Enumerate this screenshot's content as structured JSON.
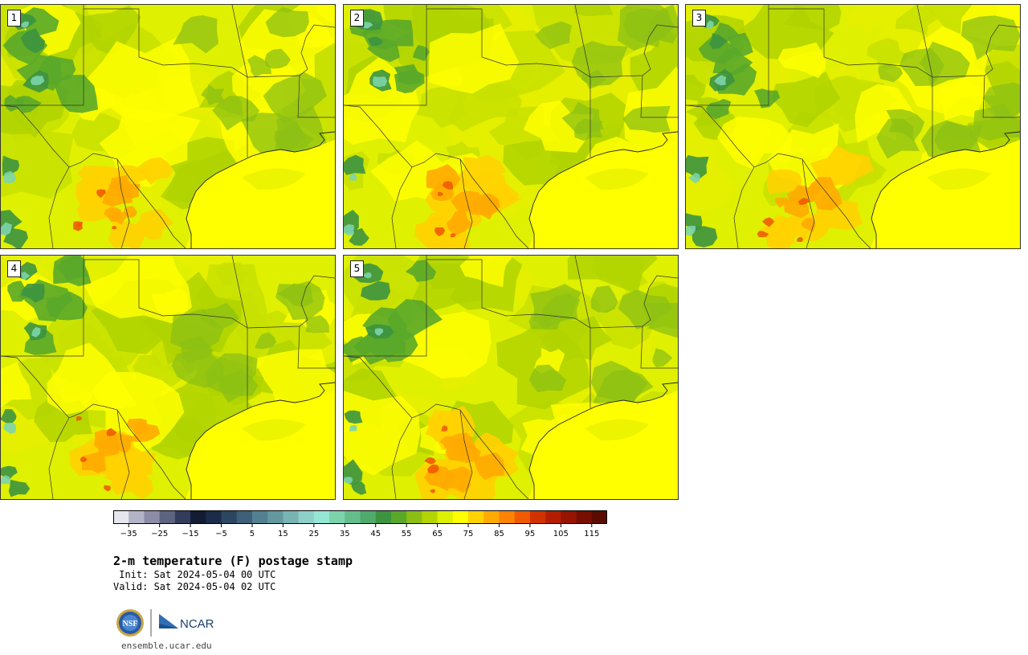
{
  "panels": [
    {
      "label": "1",
      "warmth": 0.55
    },
    {
      "label": "2",
      "warmth": 0.75
    },
    {
      "label": "3",
      "warmth": 0.7
    },
    {
      "label": "4",
      "warmth": 0.6
    },
    {
      "label": "5",
      "warmth": 0.65
    }
  ],
  "colorbar": {
    "colors": [
      "#e6e6ee",
      "#b4b4c8",
      "#8c8ca8",
      "#5c6482",
      "#343c5c",
      "#141c34",
      "#1c2c48",
      "#2c4660",
      "#3e6078",
      "#528090",
      "#62989e",
      "#78b4b4",
      "#8cd0c8",
      "#96e6d4",
      "#7cd4ac",
      "#64be8c",
      "#50aa6c",
      "#3c9440",
      "#5aa82a",
      "#8cbe14",
      "#b4d400",
      "#dcf000",
      "#ffff00",
      "#ffd200",
      "#ffaa00",
      "#ff8200",
      "#f05a00",
      "#d23200",
      "#b41e00",
      "#961400",
      "#780e00",
      "#5a0c00"
    ],
    "ticks": [
      "−35",
      "−25",
      "−15",
      "−5",
      "5",
      "15",
      "25",
      "35",
      "45",
      "55",
      "65",
      "75",
      "85",
      "95",
      "105",
      "115"
    ],
    "min": -40,
    "max": 120
  },
  "title": {
    "main": "2-m temperature (F) postage stamp",
    "init": " Init: Sat 2024-05-04 00 UTC",
    "valid": "Valid: Sat 2024-05-04 02 UTC"
  },
  "logos": {
    "nsf": "NSF",
    "ncar": "NCAR"
  },
  "website": "ensemble.ucar.edu"
}
